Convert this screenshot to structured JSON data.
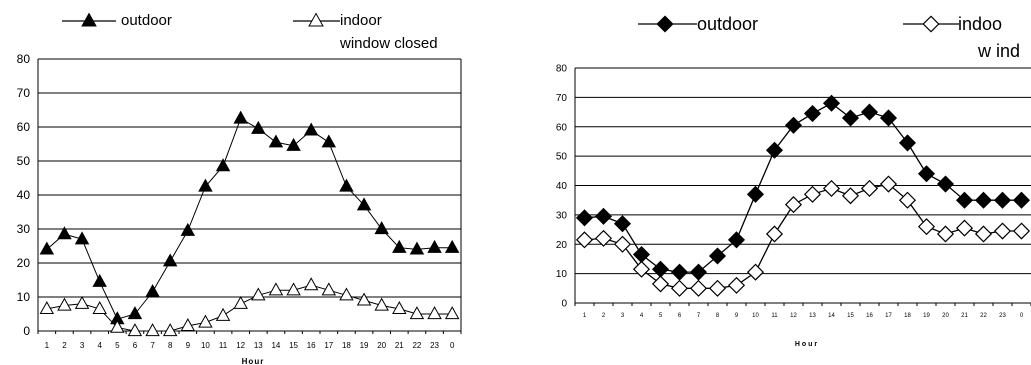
{
  "chart_data": [
    {
      "type": "line",
      "title": "",
      "xlabel": "Hour",
      "ylabel": "",
      "ylim": [
        0,
        80
      ],
      "yticks": [
        0,
        10,
        20,
        30,
        40,
        50,
        60,
        70,
        80
      ],
      "grid": "horizontal",
      "legend_position": "top",
      "categories": [
        "1",
        "2",
        "3",
        "4",
        "5",
        "6",
        "7",
        "8",
        "9",
        "10",
        "11",
        "12",
        "13",
        "14",
        "15",
        "16",
        "17",
        "18",
        "19",
        "20",
        "21",
        "22",
        "23",
        "0"
      ],
      "series": [
        {
          "name": "outdoor",
          "marker": "triangle",
          "fill": "#000000",
          "values": [
            24,
            28.5,
            27,
            14.5,
            3.5,
            5,
            11.5,
            20.5,
            29.5,
            42.5,
            48.5,
            62.5,
            59.5,
            55.5,
            54.5,
            59,
            55.5,
            42.5,
            37,
            30,
            24.5,
            24,
            24.5,
            24.5
          ]
        },
        {
          "name": "indoor",
          "name_line2": "window closed",
          "marker": "triangle",
          "fill": "#ffffff",
          "values": [
            6.5,
            7.5,
            8,
            6.5,
            1,
            0,
            0,
            0,
            1.5,
            2.5,
            4.5,
            8,
            10.5,
            12,
            12,
            13.5,
            12,
            10.5,
            9,
            7.5,
            6.5,
            5,
            5,
            5
          ]
        }
      ]
    },
    {
      "type": "line",
      "title": "",
      "xlabel": "Hour",
      "ylabel": "",
      "ylim": [
        0,
        80
      ],
      "yticks": [
        0,
        10,
        20,
        30,
        40,
        50,
        60,
        70,
        80
      ],
      "grid": "horizontal",
      "legend_position": "top",
      "categories": [
        "1",
        "2",
        "3",
        "4",
        "5",
        "6",
        "7",
        "8",
        "9",
        "10",
        "11",
        "12",
        "13",
        "14",
        "15",
        "16",
        "17",
        "18",
        "19",
        "20",
        "21",
        "22",
        "23",
        "0"
      ],
      "series": [
        {
          "name": "outdoor",
          "marker": "diamond",
          "fill": "#000000",
          "values": [
            29,
            29.5,
            27,
            16.5,
            11.5,
            10.5,
            10.5,
            16,
            21.5,
            37,
            52,
            60.5,
            64.5,
            68,
            63,
            65,
            63,
            54.5,
            44,
            40.5,
            35,
            35,
            35,
            35
          ]
        },
        {
          "name": "indoo",
          "name_line2": "w ind",
          "marker": "diamond",
          "fill": "#ffffff",
          "values": [
            21.5,
            22,
            20,
            11.5,
            6.5,
            5,
            5,
            5,
            6,
            10.5,
            23.5,
            33.5,
            37,
            39,
            36.5,
            39,
            40.5,
            35,
            26,
            23.5,
            25.5,
            23.5,
            24.5,
            24.5
          ]
        }
      ]
    }
  ]
}
